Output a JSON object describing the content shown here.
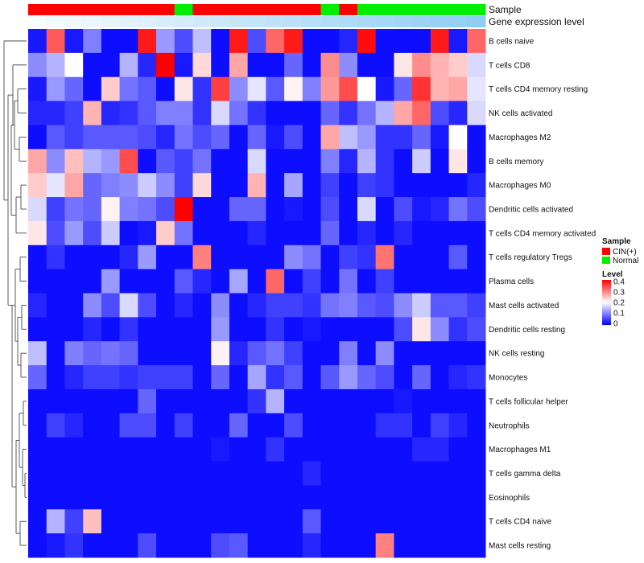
{
  "chart_data": {
    "type": "heatmap",
    "title": "",
    "annotations": {
      "sample_title": "Sample",
      "gene_title": "Gene expression level"
    },
    "colors": {
      "cin": "#ff0000",
      "normal": "#00ee00",
      "low": "#0000ff",
      "mid": "#ffffff",
      "high": "#ff0000"
    },
    "sample_groups": [
      "CIN(+)",
      "CIN(+)",
      "CIN(+)",
      "CIN(+)",
      "CIN(+)",
      "CIN(+)",
      "CIN(+)",
      "CIN(+)",
      "Normal",
      "CIN(+)",
      "CIN(+)",
      "CIN(+)",
      "CIN(+)",
      "CIN(+)",
      "CIN(+)",
      "CIN(+)",
      "Normal",
      "CIN(+)",
      "Normal",
      "Normal",
      "Normal",
      "Normal",
      "Normal",
      "Normal",
      "Normal"
    ],
    "gene_level": [
      0.05,
      0.08,
      0.11,
      0.14,
      0.17,
      0.2,
      0.23,
      0.26,
      0.29,
      0.32,
      0.35,
      0.38,
      0.41,
      0.44,
      0.47,
      0.5,
      0.53,
      0.56,
      0.59,
      0.62,
      0.65,
      0.68,
      0.71,
      0.74,
      0.77
    ],
    "rows": [
      "B cells naive",
      "T cells CD8",
      "T cells CD4 memory resting",
      "NK cells activated",
      "Macrophages M2",
      "B cells memory",
      "Macrophages M0",
      "Dendritic cells activated",
      "T cells CD4 memory activated",
      "T cells regulatory  Tregs",
      "Plasma cells",
      "Mast cells activated",
      "Dendritic cells resting",
      "NK cells resting",
      "Monocytes",
      "T cells follicular helper",
      "Neutrophils",
      "Macrophages M1",
      "T cells gamma delta",
      "Eosinophils",
      "T cells CD4 naive",
      "Mast cells resting"
    ],
    "values": [
      [
        0.02,
        0.33,
        0.02,
        0.1,
        0.01,
        0.01,
        0.38,
        0.12,
        0.06,
        0.15,
        0.01,
        0.38,
        0.06,
        0.32,
        0.38,
        0.01,
        0.01,
        0.03,
        0.39,
        0.01,
        0.01,
        0.01,
        0.38,
        0.02,
        0.32
      ],
      [
        0.11,
        0.14,
        0.2,
        0.01,
        0.01,
        0.14,
        0.03,
        0.4,
        0.02,
        0.23,
        0.01,
        0.27,
        0.01,
        0.01,
        0.08,
        0.01,
        0.29,
        0.11,
        0.01,
        0.01,
        0.22,
        0.29,
        0.26,
        0.24,
        0.17
      ],
      [
        0.02,
        0.12,
        0.08,
        0.01,
        0.24,
        0.09,
        0.07,
        0.01,
        0.22,
        0.04,
        0.35,
        0.11,
        0.18,
        0.07,
        0.21,
        0.1,
        0.28,
        0.34,
        0.2,
        0.02,
        0.08,
        0.36,
        0.26,
        0.27,
        0.18
      ],
      [
        0.03,
        0.03,
        0.05,
        0.26,
        0.03,
        0.04,
        0.07,
        0.1,
        0.1,
        0.04,
        0.17,
        0.09,
        0.04,
        0.01,
        0.01,
        0.01,
        0.08,
        0.04,
        0.09,
        0.14,
        0.27,
        0.32,
        0.06,
        0.03,
        0.17
      ],
      [
        0.01,
        0.07,
        0.05,
        0.07,
        0.07,
        0.07,
        0.06,
        0.03,
        0.09,
        0.06,
        0.08,
        0.01,
        0.08,
        0.02,
        0.06,
        0.01,
        0.27,
        0.15,
        0.12,
        0.04,
        0.04,
        0.08,
        0.02,
        0.2,
        0.01
      ],
      [
        0.27,
        0.11,
        0.25,
        0.14,
        0.12,
        0.34,
        0.01,
        0.07,
        0.05,
        0.09,
        0.01,
        0.01,
        0.17,
        0.01,
        0.01,
        0.01,
        0.1,
        0.03,
        0.14,
        0.04,
        0.01,
        0.16,
        0.01,
        0.22,
        0.01
      ],
      [
        0.24,
        0.18,
        0.27,
        0.08,
        0.1,
        0.11,
        0.16,
        0.11,
        0.05,
        0.23,
        0.01,
        0.01,
        0.26,
        0.01,
        0.13,
        0.01,
        0.05,
        0.01,
        0.05,
        0.04,
        0.01,
        0.01,
        0.01,
        0.01,
        0.03
      ],
      [
        0.17,
        0.05,
        0.09,
        0.08,
        0.21,
        0.1,
        0.09,
        0.06,
        0.4,
        0.01,
        0.01,
        0.08,
        0.08,
        0.01,
        0.02,
        0.01,
        0.06,
        0.01,
        0.17,
        0.01,
        0.06,
        0.02,
        0.03,
        0.09,
        0.06
      ],
      [
        0.22,
        0.06,
        0.12,
        0.06,
        0.16,
        0.01,
        0.02,
        0.24,
        0.09,
        0.01,
        0.01,
        0.01,
        0.03,
        0.01,
        0.01,
        0.01,
        0.08,
        0.01,
        0.03,
        0.01,
        0.03,
        0.01,
        0.01,
        0.01,
        0.01
      ],
      [
        0.01,
        0.04,
        0.01,
        0.01,
        0.01,
        0.03,
        0.12,
        0.01,
        0.01,
        0.3,
        0.01,
        0.01,
        0.01,
        0.01,
        0.11,
        0.09,
        0.01,
        0.05,
        0.04,
        0.31,
        0.01,
        0.01,
        0.01,
        0.07,
        0.01
      ],
      [
        0.01,
        0.01,
        0.01,
        0.01,
        0.12,
        0.01,
        0.01,
        0.01,
        0.07,
        0.03,
        0.01,
        0.13,
        0.01,
        0.32,
        0.01,
        0.05,
        0.01,
        0.09,
        0.01,
        0.05,
        0.01,
        0.01,
        0.01,
        0.01,
        0.01
      ],
      [
        0.03,
        0.01,
        0.01,
        0.11,
        0.06,
        0.17,
        0.06,
        0.01,
        0.03,
        0.01,
        0.11,
        0.01,
        0.03,
        0.05,
        0.05,
        0.04,
        0.09,
        0.1,
        0.07,
        0.06,
        0.11,
        0.16,
        0.07,
        0.07,
        0.05
      ],
      [
        0.01,
        0.01,
        0.01,
        0.03,
        0.01,
        0.04,
        0.01,
        0.01,
        0.01,
        0.01,
        0.12,
        0.01,
        0.01,
        0.04,
        0.01,
        0.02,
        0.01,
        0.01,
        0.01,
        0.01,
        0.06,
        0.22,
        0.11,
        0.04,
        0.06
      ],
      [
        0.15,
        0.01,
        0.1,
        0.08,
        0.09,
        0.08,
        0.01,
        0.01,
        0.01,
        0.01,
        0.21,
        0.03,
        0.07,
        0.09,
        0.05,
        0.01,
        0.01,
        0.1,
        0.01,
        0.11,
        0.01,
        0.01,
        0.01,
        0.01,
        0.01
      ],
      [
        0.08,
        0.01,
        0.03,
        0.05,
        0.05,
        0.04,
        0.05,
        0.05,
        0.05,
        0.01,
        0.08,
        0.01,
        0.13,
        0.04,
        0.07,
        0.01,
        0.07,
        0.12,
        0.08,
        0.06,
        0.01,
        0.08,
        0.01,
        0.03,
        0.04
      ],
      [
        0.01,
        0.01,
        0.01,
        0.01,
        0.01,
        0.01,
        0.08,
        0.01,
        0.01,
        0.01,
        0.01,
        0.01,
        0.04,
        0.14,
        0.01,
        0.01,
        0.01,
        0.01,
        0.01,
        0.01,
        0.02,
        0.01,
        0.01,
        0.01,
        0.01
      ],
      [
        0.01,
        0.05,
        0.03,
        0.01,
        0.01,
        0.06,
        0.06,
        0.01,
        0.05,
        0.01,
        0.01,
        0.08,
        0.01,
        0.01,
        0.06,
        0.01,
        0.01,
        0.01,
        0.01,
        0.04,
        0.04,
        0.01,
        0.05,
        0.03,
        0.01
      ],
      [
        0.01,
        0.01,
        0.01,
        0.01,
        0.01,
        0.01,
        0.01,
        0.01,
        0.01,
        0.01,
        0.02,
        0.01,
        0.01,
        0.04,
        0.01,
        0.01,
        0.01,
        0.01,
        0.01,
        0.01,
        0.01,
        0.03,
        0.03,
        0.01,
        0.01
      ],
      [
        0.01,
        0.01,
        0.01,
        0.01,
        0.01,
        0.01,
        0.01,
        0.01,
        0.01,
        0.01,
        0.01,
        0.01,
        0.01,
        0.01,
        0.01,
        0.03,
        0.01,
        0.01,
        0.01,
        0.01,
        0.01,
        0.01,
        0.01,
        0.01,
        0.01
      ],
      [
        0.01,
        0.01,
        0.01,
        0.01,
        0.01,
        0.01,
        0.01,
        0.01,
        0.01,
        0.01,
        0.01,
        0.01,
        0.01,
        0.01,
        0.01,
        0.01,
        0.01,
        0.01,
        0.01,
        0.01,
        0.01,
        0.01,
        0.01,
        0.01,
        0.01
      ],
      [
        0.01,
        0.14,
        0.05,
        0.25,
        0.01,
        0.01,
        0.01,
        0.01,
        0.01,
        0.01,
        0.01,
        0.01,
        0.01,
        0.01,
        0.01,
        0.07,
        0.01,
        0.01,
        0.01,
        0.01,
        0.01,
        0.01,
        0.01,
        0.01,
        0.01
      ],
      [
        0.01,
        0.02,
        0.04,
        0.01,
        0.01,
        0.01,
        0.06,
        0.01,
        0.01,
        0.01,
        0.06,
        0.07,
        0.01,
        0.01,
        0.01,
        0.03,
        0.01,
        0.01,
        0.01,
        0.3,
        0.01,
        0.01,
        0.01,
        0.01,
        0.01
      ]
    ],
    "legend_sample": {
      "title": "Sample",
      "items": [
        "CIN(+)",
        "Normal"
      ]
    },
    "legend_level": {
      "title": "Level",
      "ticks": [
        "0.4",
        "0.3",
        "0.2",
        "0.1",
        "0"
      ]
    },
    "value_range": [
      0,
      0.4
    ]
  }
}
